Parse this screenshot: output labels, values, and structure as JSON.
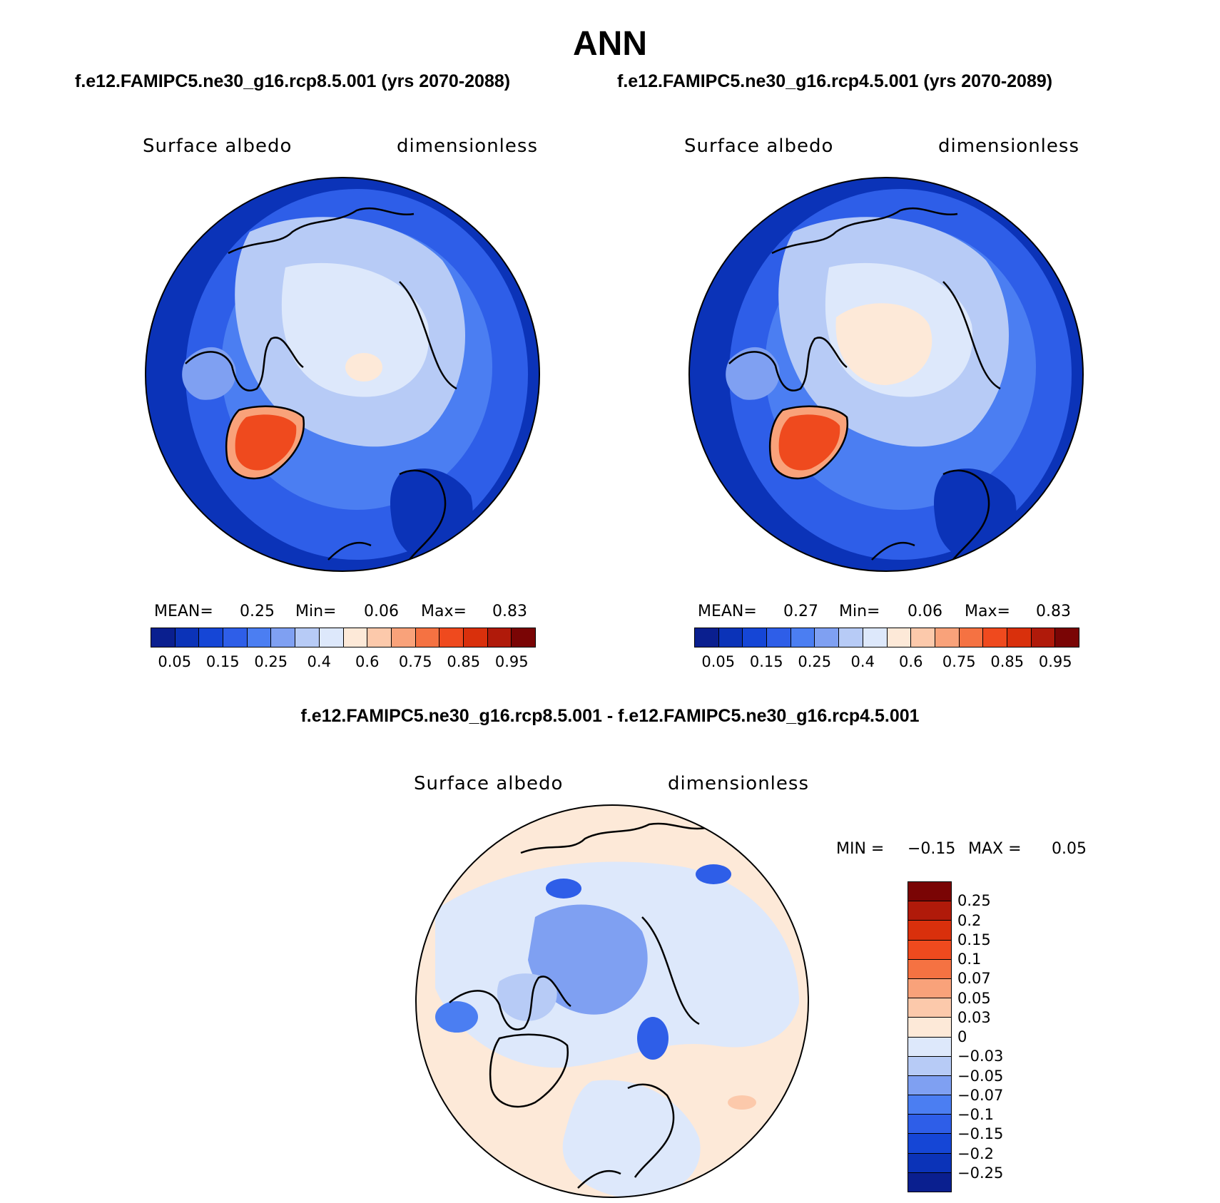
{
  "title": "ANN",
  "panels": {
    "left": {
      "case": "f.e12.FAMIPC5.ne30_g16.rcp8.5.001 (yrs 2070-2088)",
      "variable": "Surface albedo",
      "units": "dimensionless",
      "mean_label": "MEAN=",
      "mean": "0.25",
      "min_label": "Min=",
      "min": "0.06",
      "max_label": "Max=",
      "max": "0.83"
    },
    "right": {
      "case": "f.e12.FAMIPC5.ne30_g16.rcp4.5.001 (yrs 2070-2089)",
      "variable": "Surface albedo",
      "units": "dimensionless",
      "mean_label": "MEAN=",
      "mean": "0.27",
      "min_label": "Min=",
      "min": "0.06",
      "max_label": "Max=",
      "max": "0.83"
    },
    "diff": {
      "case": "f.e12.FAMIPC5.ne30_g16.rcp8.5.001 - f.e12.FAMIPC5.ne30_g16.rcp4.5.001",
      "variable": "Surface albedo",
      "units": "dimensionless",
      "min_label": "MIN =",
      "min": "−0.15",
      "max_label": "MAX =",
      "max": "0.05"
    }
  },
  "colorbar_abs": {
    "colors": [
      "#0a1f8f",
      "#0b33b8",
      "#1546d6",
      "#2e5ee8",
      "#4b7ef2",
      "#7fa0f2",
      "#b7cbf6",
      "#dde8fb",
      "#fde9d8",
      "#fcc9ab",
      "#f9a27a",
      "#f57242",
      "#ef4a1e",
      "#d9300c",
      "#b01a0a",
      "#7a0505"
    ],
    "ticks": [
      "0.05",
      "0.15",
      "0.25",
      "0.4",
      "0.6",
      "0.75",
      "0.85",
      "0.95"
    ]
  },
  "colorbar_diff": {
    "colors": [
      "#7a0505",
      "#b01a0a",
      "#d9300c",
      "#ef4a1e",
      "#f57242",
      "#f9a27a",
      "#fcc9ab",
      "#fde9d8",
      "#dde8fb",
      "#b7cbf6",
      "#7fa0f2",
      "#4b7ef2",
      "#2e5ee8",
      "#1546d6",
      "#0b33b8",
      "#0a1f8f"
    ],
    "ticks": [
      "0.25",
      "0.2",
      "0.15",
      "0.1",
      "0.07",
      "0.05",
      "0.03",
      "0",
      "−0.03",
      "−0.05",
      "−0.07",
      "−0.1",
      "−0.15",
      "−0.2",
      "−0.25"
    ]
  }
}
